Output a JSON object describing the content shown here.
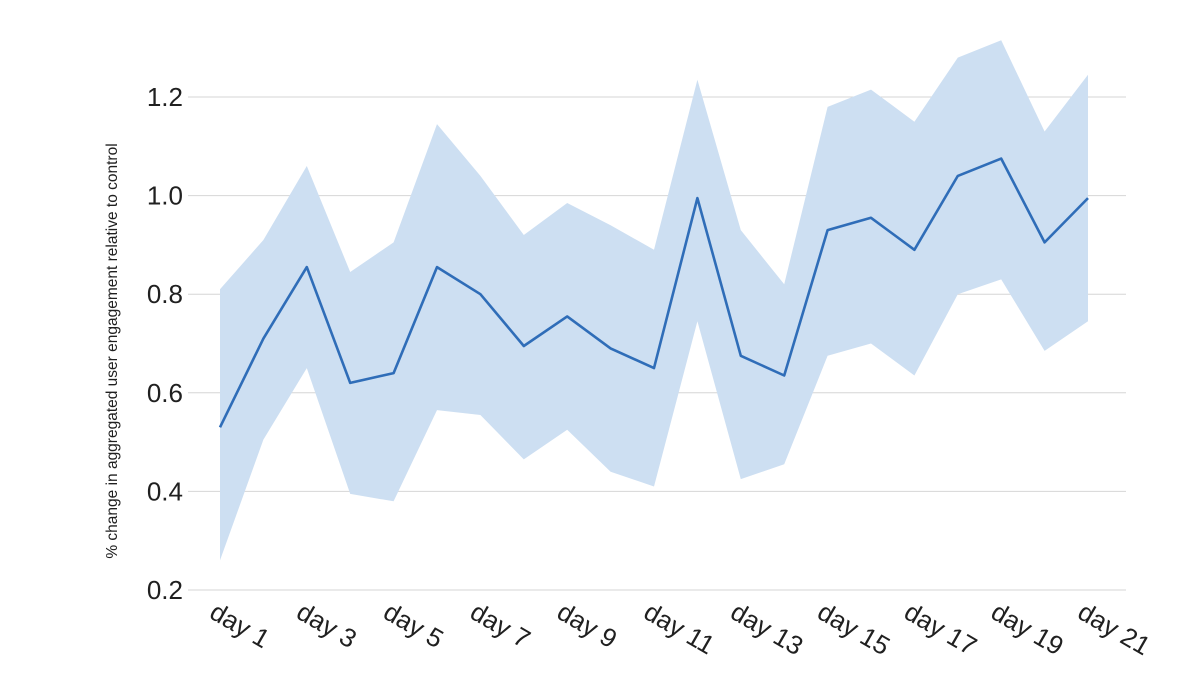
{
  "chart_data": {
    "type": "line",
    "title": "",
    "xlabel": "",
    "ylabel": "% change in aggregated user engagement relative to control",
    "categories": [
      "day 1",
      "day 2",
      "day 3",
      "day 4",
      "day 5",
      "day 6",
      "day 7",
      "day 8",
      "day 9",
      "day 10",
      "day 11",
      "day 12",
      "day 13",
      "day 14",
      "day 15",
      "day 16",
      "day 17",
      "day 18",
      "day 19",
      "day 20",
      "day 21"
    ],
    "x_tick_labels": [
      "day 1",
      "day 3",
      "day 5",
      "day 7",
      "day 9",
      "day 11",
      "day 13",
      "day 15",
      "day 17",
      "day 19",
      "day 21"
    ],
    "y_ticks": [
      0.2,
      0.4,
      0.6,
      0.8,
      1.0,
      1.2
    ],
    "y_tick_labels": [
      "0.2",
      "0.4",
      "0.6",
      "0.8",
      "1.0",
      "1.2"
    ],
    "ylim": [
      0.2,
      1.3
    ],
    "grid": true,
    "series": [
      {
        "values": [
          0.53,
          0.71,
          0.855,
          0.62,
          0.64,
          0.855,
          0.8,
          0.695,
          0.755,
          0.69,
          0.65,
          0.995,
          0.675,
          0.635,
          0.93,
          0.955,
          0.89,
          1.04,
          1.075,
          0.905,
          0.995
        ],
        "lower": [
          0.26,
          0.505,
          0.65,
          0.395,
          0.38,
          0.565,
          0.555,
          0.465,
          0.525,
          0.44,
          0.41,
          0.745,
          0.425,
          0.455,
          0.675,
          0.7,
          0.635,
          0.8,
          0.83,
          0.685,
          0.745
        ],
        "upper": [
          0.81,
          0.91,
          1.06,
          0.845,
          0.905,
          1.145,
          1.04,
          0.92,
          0.985,
          0.94,
          0.89,
          1.235,
          0.93,
          0.82,
          1.18,
          1.215,
          1.15,
          1.28,
          1.315,
          1.13,
          1.245
        ]
      }
    ],
    "colors": {
      "line": "#2f6db8",
      "band": "#cddff2",
      "grid": "#d6d6d6",
      "text": "#202020"
    }
  }
}
